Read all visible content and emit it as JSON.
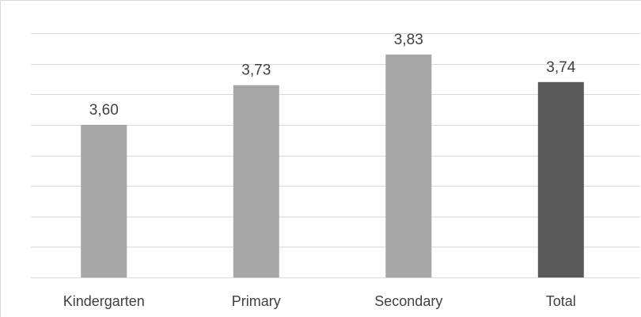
{
  "chart_data": {
    "type": "bar",
    "title": "",
    "xlabel": "",
    "ylabel": "",
    "categories": [
      "Kindergarten",
      "Primary",
      "Secondary",
      "Total"
    ],
    "values": [
      3.6,
      3.73,
      3.83,
      3.74
    ],
    "data_labels": [
      "3,60",
      "3,73",
      "3,83",
      "3,74"
    ],
    "ylim": [
      3.1,
      3.9
    ],
    "grid": true,
    "colors": {
      "bar": "#a6a6a6",
      "highlight_bar": "#595959",
      "gridline": "#d9d9d9",
      "text": "#404040"
    },
    "highlight_category": "Total"
  }
}
